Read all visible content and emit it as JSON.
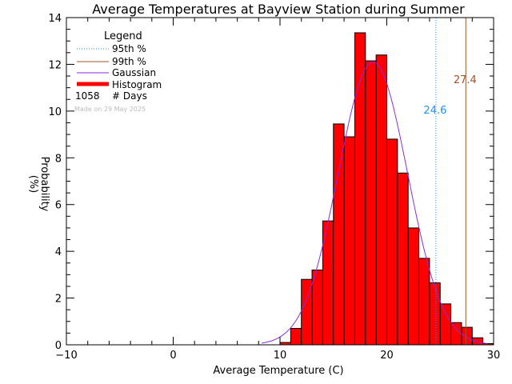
{
  "chart_data": {
    "type": "bar",
    "title": "Average Temperatures at Bayview Station during Summer",
    "xlabel": "Average Temperature (C)",
    "ylabel": "Probability",
    "ylabel_unit": "(%)",
    "xlim": [
      -10,
      30
    ],
    "ylim": [
      0,
      14
    ],
    "x_ticks": [
      -10,
      0,
      10,
      20,
      30
    ],
    "y_ticks": [
      0,
      2,
      4,
      6,
      8,
      10,
      12,
      14
    ],
    "histogram": {
      "name": "Histogram",
      "bin_width": 1,
      "bins": [
        {
          "x0": 10,
          "value": 0.1
        },
        {
          "x0": 11,
          "value": 0.7
        },
        {
          "x0": 12,
          "value": 2.8
        },
        {
          "x0": 13,
          "value": 3.2
        },
        {
          "x0": 14,
          "value": 5.3
        },
        {
          "x0": 15,
          "value": 9.45
        },
        {
          "x0": 16,
          "value": 8.9
        },
        {
          "x0": 17,
          "value": 13.35
        },
        {
          "x0": 18,
          "value": 12.15
        },
        {
          "x0": 19,
          "value": 12.4
        },
        {
          "x0": 20,
          "value": 8.8
        },
        {
          "x0": 21,
          "value": 7.35
        },
        {
          "x0": 22,
          "value": 5.0
        },
        {
          "x0": 23,
          "value": 3.7
        },
        {
          "x0": 24,
          "value": 2.65
        },
        {
          "x0": 25,
          "value": 1.75
        },
        {
          "x0": 26,
          "value": 0.95
        },
        {
          "x0": 27,
          "value": 0.75
        },
        {
          "x0": 28,
          "value": 0.3
        },
        {
          "x0": 29,
          "value": 0.05
        }
      ]
    },
    "gaussian": {
      "name": "Gaussian",
      "mean": 18.7,
      "sd": 3.25,
      "peak": 12.1
    },
    "percentiles": [
      {
        "name": "95th %",
        "value": 24.6,
        "label": "24.6",
        "color": "#1e90ff",
        "style": "dotted"
      },
      {
        "name": "99th %",
        "value": 27.4,
        "label": "27.4",
        "color": "#a0522d",
        "style": "solid"
      }
    ],
    "legend": {
      "title": "Legend",
      "entries": [
        "95th %",
        "99th %",
        "Gaussian",
        "Histogram"
      ],
      "count_value": "1058",
      "count_label": "# Days",
      "placement": "top-left"
    },
    "watermark": "Made on 29 May 2025",
    "colors": {
      "bars": "#ff0000",
      "gaussian": "#8a2be2",
      "axes": "#000000",
      "watermark": "#bbbbbb"
    },
    "grid": false
  }
}
